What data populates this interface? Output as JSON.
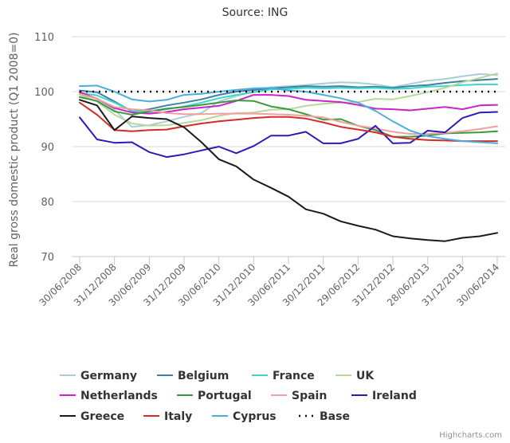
{
  "chart_data": {
    "type": "line",
    "title": "Source: ING",
    "xlabel": "",
    "ylabel": "Real gross domestic product (Q1 2008=0)",
    "ylim": [
      70,
      110
    ],
    "yticks": [
      70,
      80,
      90,
      100,
      110
    ],
    "grid": true,
    "legend_position": "bottom",
    "credits": "Highcharts.com",
    "x_tick_labels": [
      "30/06/2008",
      "31/12/2008",
      "30/06/2009",
      "31/12/2009",
      "30/06/2010",
      "31/12/2010",
      "30/06/2011",
      "30/12/2011",
      "29/06/2012",
      "31/12/2012",
      "28/06/2013",
      "31/12/2013",
      "30/06/2014"
    ],
    "x": [
      "Q2 2008",
      "Q3 2008",
      "Q4 2008",
      "Q1 2009",
      "Q2 2009",
      "Q3 2009",
      "Q4 2009",
      "Q1 2010",
      "Q2 2010",
      "Q3 2010",
      "Q4 2010",
      "Q1 2011",
      "Q2 2011",
      "Q3 2011",
      "Q4 2011",
      "Q1 2012",
      "Q2 2012",
      "Q3 2012",
      "Q4 2012",
      "Q1 2013",
      "Q2 2013",
      "Q3 2013",
      "Q4 2013",
      "Q1 2014",
      "Q2 2014"
    ],
    "series": [
      {
        "name": "Germany",
        "color": "#a8cfd6",
        "dash": false,
        "values": [
          99.5,
          98.8,
          96.7,
          93.6,
          93.9,
          94.6,
          95.4,
          96.1,
          98.2,
          99.2,
          100.0,
          100.8,
          101.0,
          101.2,
          101.5,
          101.7,
          101.6,
          101.3,
          100.8,
          101.4,
          102.0,
          102.3,
          102.8,
          103.2,
          103.0
        ]
      },
      {
        "name": "Belgium",
        "color": "#3d7fa6",
        "dash": false,
        "values": [
          100.2,
          99.9,
          98.2,
          96.4,
          96.8,
          97.5,
          98.0,
          98.6,
          99.4,
          100.0,
          100.3,
          100.6,
          100.8,
          101.0,
          100.9,
          101.0,
          100.8,
          100.9,
          100.7,
          101.0,
          101.2,
          101.6,
          101.9,
          102.1,
          102.3
        ]
      },
      {
        "name": "France",
        "color": "#3ed8c8",
        "dash": false,
        "values": [
          99.8,
          99.3,
          98.0,
          96.5,
          96.3,
          96.8,
          97.3,
          98.0,
          98.8,
          99.4,
          99.9,
          100.4,
          100.5,
          100.7,
          100.6,
          100.7,
          100.6,
          100.7,
          100.5,
          100.6,
          100.9,
          101.0,
          101.2,
          101.3,
          101.3
        ]
      },
      {
        "name": "UK",
        "color": "#b8d89a",
        "dash": false,
        "values": [
          99.4,
          98.2,
          95.8,
          94.2,
          93.8,
          93.9,
          94.3,
          94.8,
          95.6,
          96.1,
          96.2,
          96.7,
          96.8,
          97.4,
          97.8,
          98.0,
          98.1,
          98.7,
          98.6,
          99.2,
          99.9,
          100.7,
          101.7,
          102.5,
          103.3
        ]
      },
      {
        "name": "Netherlands",
        "color": "#cc22cc",
        "dash": false,
        "values": [
          99.9,
          98.7,
          97.0,
          96.2,
          96.0,
          96.3,
          96.8,
          97.1,
          97.4,
          98.3,
          99.4,
          99.4,
          99.2,
          98.5,
          98.3,
          98.1,
          97.6,
          96.9,
          96.8,
          96.6,
          96.9,
          97.2,
          96.8,
          97.5,
          97.6
        ]
      },
      {
        "name": "Portugal",
        "color": "#3a9a3a",
        "dash": false,
        "values": [
          99.0,
          98.3,
          96.4,
          95.8,
          96.4,
          96.9,
          97.2,
          97.6,
          98.0,
          98.4,
          98.3,
          97.3,
          96.8,
          95.9,
          94.9,
          95.0,
          93.8,
          93.0,
          91.8,
          91.8,
          92.0,
          92.4,
          92.5,
          92.6,
          92.8
        ]
      },
      {
        "name": "Spain",
        "color": "#f0a0a0",
        "dash": false,
        "values": [
          99.6,
          98.7,
          97.2,
          96.8,
          96.6,
          96.1,
          95.9,
          95.9,
          96.0,
          96.0,
          96.0,
          95.9,
          95.8,
          95.6,
          95.3,
          94.5,
          93.8,
          93.3,
          92.7,
          92.3,
          92.3,
          92.5,
          92.8,
          93.2,
          93.7
        ]
      },
      {
        "name": "Ireland",
        "color": "#2c1ab8",
        "dash": false,
        "values": [
          95.3,
          91.3,
          90.7,
          90.8,
          89.0,
          88.1,
          88.6,
          89.3,
          90.0,
          88.8,
          90.1,
          92.0,
          92.0,
          92.7,
          90.6,
          90.6,
          91.4,
          93.8,
          90.6,
          90.7,
          92.9,
          92.6,
          95.2,
          96.2,
          96.3
        ]
      },
      {
        "name": "Greece",
        "color": "#1a1a1a",
        "dash": false,
        "values": [
          98.5,
          97.5,
          93.0,
          95.5,
          95.2,
          95.0,
          93.5,
          90.8,
          87.7,
          86.4,
          84.0,
          82.5,
          80.9,
          78.6,
          77.8,
          76.4,
          75.6,
          74.9,
          73.7,
          73.3,
          73.0,
          72.8,
          73.4,
          73.7,
          74.3
        ]
      },
      {
        "name": "Italy",
        "color": "#d42b2b",
        "dash": false,
        "values": [
          98.0,
          95.8,
          93.0,
          92.8,
          93.0,
          93.1,
          93.7,
          94.2,
          94.6,
          94.9,
          95.2,
          95.4,
          95.4,
          95.1,
          94.4,
          93.6,
          93.1,
          92.6,
          91.8,
          91.4,
          91.2,
          91.1,
          91.0,
          91.0,
          91.0
        ]
      },
      {
        "name": "Cyprus",
        "color": "#4aaedb",
        "dash": false,
        "values": [
          101.0,
          101.1,
          100.0,
          98.6,
          98.2,
          98.5,
          99.4,
          99.6,
          100.0,
          100.3,
          100.6,
          100.7,
          100.2,
          100.0,
          99.4,
          98.8,
          98.0,
          96.5,
          94.6,
          92.9,
          91.9,
          91.4,
          91.0,
          90.8,
          90.6
        ]
      },
      {
        "name": "Base",
        "color": "#111111",
        "dash": true,
        "values": [
          100,
          100,
          100,
          100,
          100,
          100,
          100,
          100,
          100,
          100,
          100,
          100,
          100,
          100,
          100,
          100,
          100,
          100,
          100,
          100,
          100,
          100,
          100,
          100,
          100
        ]
      }
    ]
  }
}
